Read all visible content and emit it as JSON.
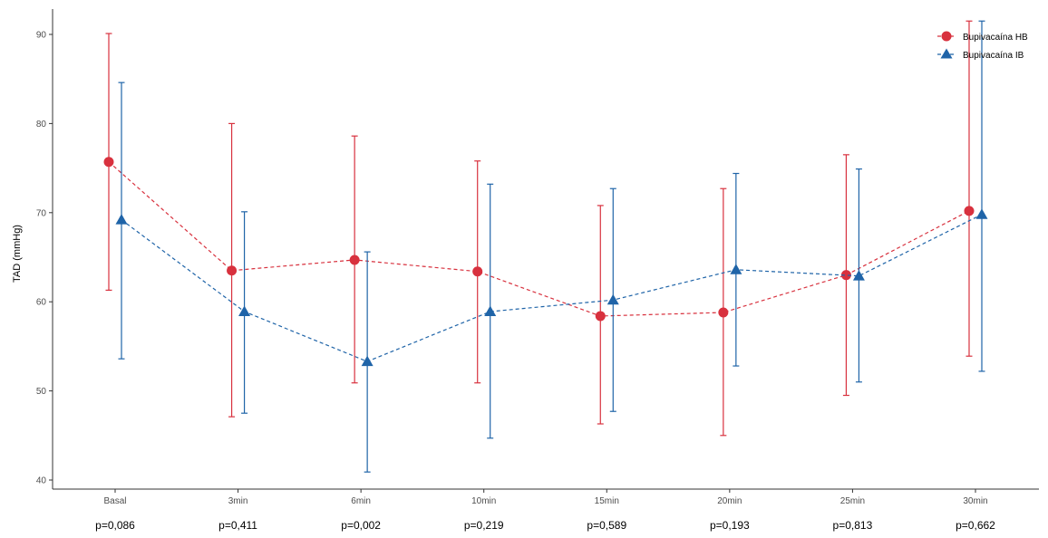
{
  "chart_data": {
    "type": "line",
    "title": "",
    "xlabel": "",
    "ylabel": "TAD (mmHg)",
    "categories": [
      "Basal",
      "3min",
      "6min",
      "10min",
      "15min",
      "20min",
      "25min",
      "30min"
    ],
    "ylim": [
      39,
      92
    ],
    "yticks": [
      40,
      50,
      60,
      70,
      80,
      90
    ],
    "grid": false,
    "legend_position": "top-right",
    "p_values": [
      "p=0,086",
      "p=0,411",
      "p=0,002",
      "p=0,219",
      "p=0,589",
      "p=0,193",
      "p=0,813",
      "p=0,662"
    ],
    "series": [
      {
        "name": "Bupivacaína HB",
        "color": "#d8313e",
        "marker": "circle",
        "values": [
          75.7,
          63.5,
          64.7,
          63.4,
          58.4,
          58.8,
          63.0,
          70.2
        ],
        "lower": [
          61.3,
          47.1,
          50.9,
          50.9,
          46.3,
          45.0,
          49.5,
          53.9
        ],
        "upper": [
          90.1,
          80.0,
          78.6,
          75.8,
          70.8,
          72.7,
          76.5,
          91.5
        ]
      },
      {
        "name": "Bupivacaína IB",
        "color": "#1f64a8",
        "marker": "triangle",
        "values": [
          69.2,
          58.9,
          53.3,
          58.9,
          60.2,
          63.6,
          62.9,
          69.8
        ],
        "lower": [
          53.6,
          47.5,
          40.9,
          44.7,
          47.7,
          52.8,
          51.0,
          52.2
        ],
        "upper": [
          84.6,
          70.1,
          65.6,
          73.2,
          72.7,
          74.4,
          74.9,
          91.5
        ]
      }
    ]
  }
}
